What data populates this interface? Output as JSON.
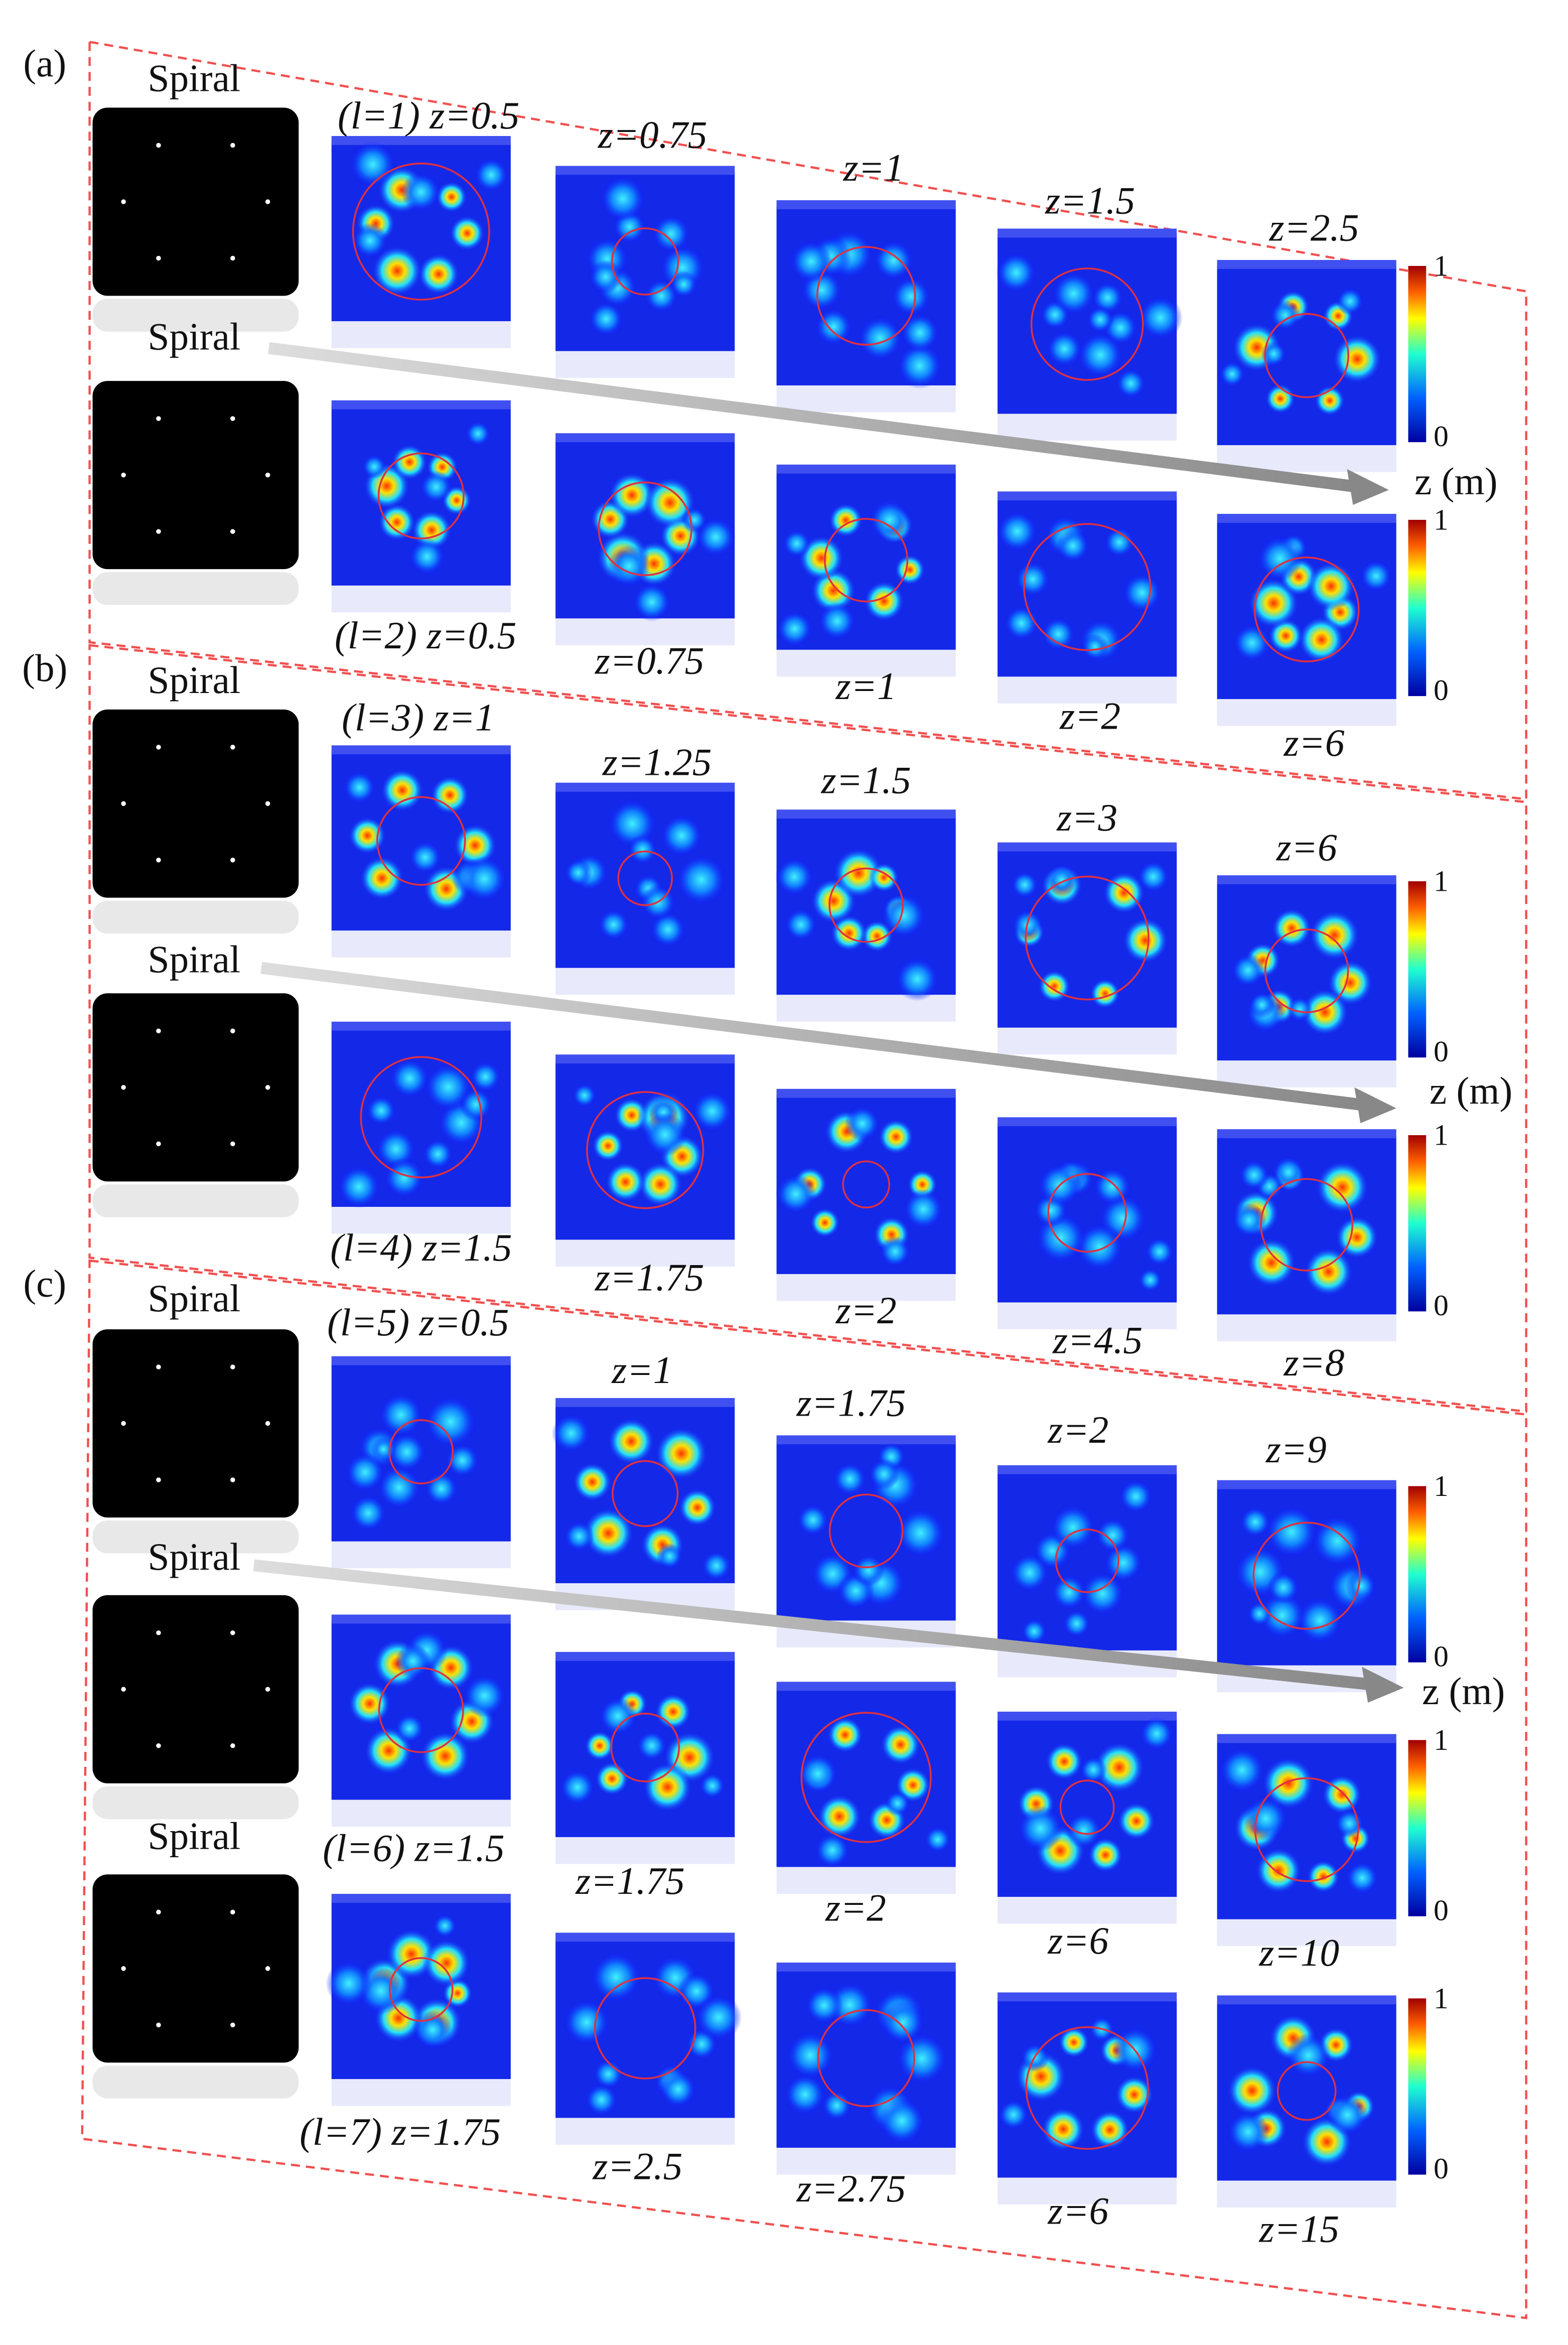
{
  "panels": [
    {
      "label": "(a)",
      "axis": "z (m)",
      "rows": [
        {
          "spiral": "Spiral",
          "labels": [
            "(l=1) z=0.5",
            "z=0.75",
            "z=1",
            "z=1.5",
            "z=2.5"
          ],
          "colorbar": {
            "max": 1,
            "min": 0
          }
        },
        {
          "spiral": "Spiral",
          "labels": [
            "(l=2) z=0.5",
            "z=0.75",
            "z=1",
            "z=2",
            "z=6"
          ],
          "colorbar": {
            "max": 1,
            "min": 0
          }
        }
      ]
    },
    {
      "label": "(b)",
      "axis": "z (m)",
      "rows": [
        {
          "spiral": "Spiral",
          "labels": [
            "(l=3) z=1",
            "z=1.25",
            "z=1.5",
            "z=3",
            "z=6"
          ],
          "colorbar": {
            "max": 1,
            "min": 0
          }
        },
        {
          "spiral": "Spiral",
          "labels": [
            "(l=4) z=1.5",
            "z=1.75",
            "z=2",
            "z=4.5",
            "z=8"
          ],
          "colorbar": {
            "max": 1,
            "min": 0
          }
        }
      ]
    },
    {
      "label": "(c)",
      "axis": "z (m)",
      "rows": [
        {
          "spiral": "Spiral",
          "labels": [
            "(l=5) z=0.5",
            "z=1",
            "z=1.75",
            "z=2",
            "z=9"
          ],
          "colorbar": {
            "max": 1,
            "min": 0
          }
        },
        {
          "spiral": "Spiral",
          "labels": [
            "(l=6) z=1.5",
            "z=1.75",
            "z=2",
            "z=6",
            "z=10"
          ],
          "colorbar": {
            "max": 1,
            "min": 0
          }
        },
        {
          "spiral": "Spiral",
          "labels": [
            "(l=7) z=1.75",
            "z=2.5",
            "z=2.75",
            "z=6",
            "z=15"
          ],
          "colorbar": {
            "max": 1,
            "min": 0
          }
        }
      ]
    }
  ]
}
